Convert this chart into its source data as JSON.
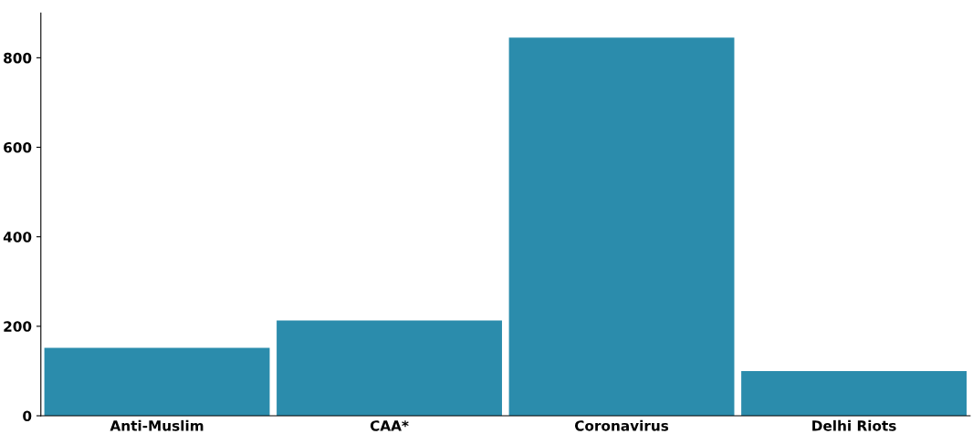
{
  "chart_data": {
    "type": "bar",
    "categories": [
      "Anti-Muslim",
      "CAA*",
      "Coronavirus",
      "Delhi Riots"
    ],
    "values": [
      152,
      213,
      845,
      100
    ],
    "color": "#2b8cac",
    "ylim": [
      0,
      900
    ],
    "yticks": [
      0,
      200,
      400,
      600,
      800
    ],
    "grid": false
  }
}
